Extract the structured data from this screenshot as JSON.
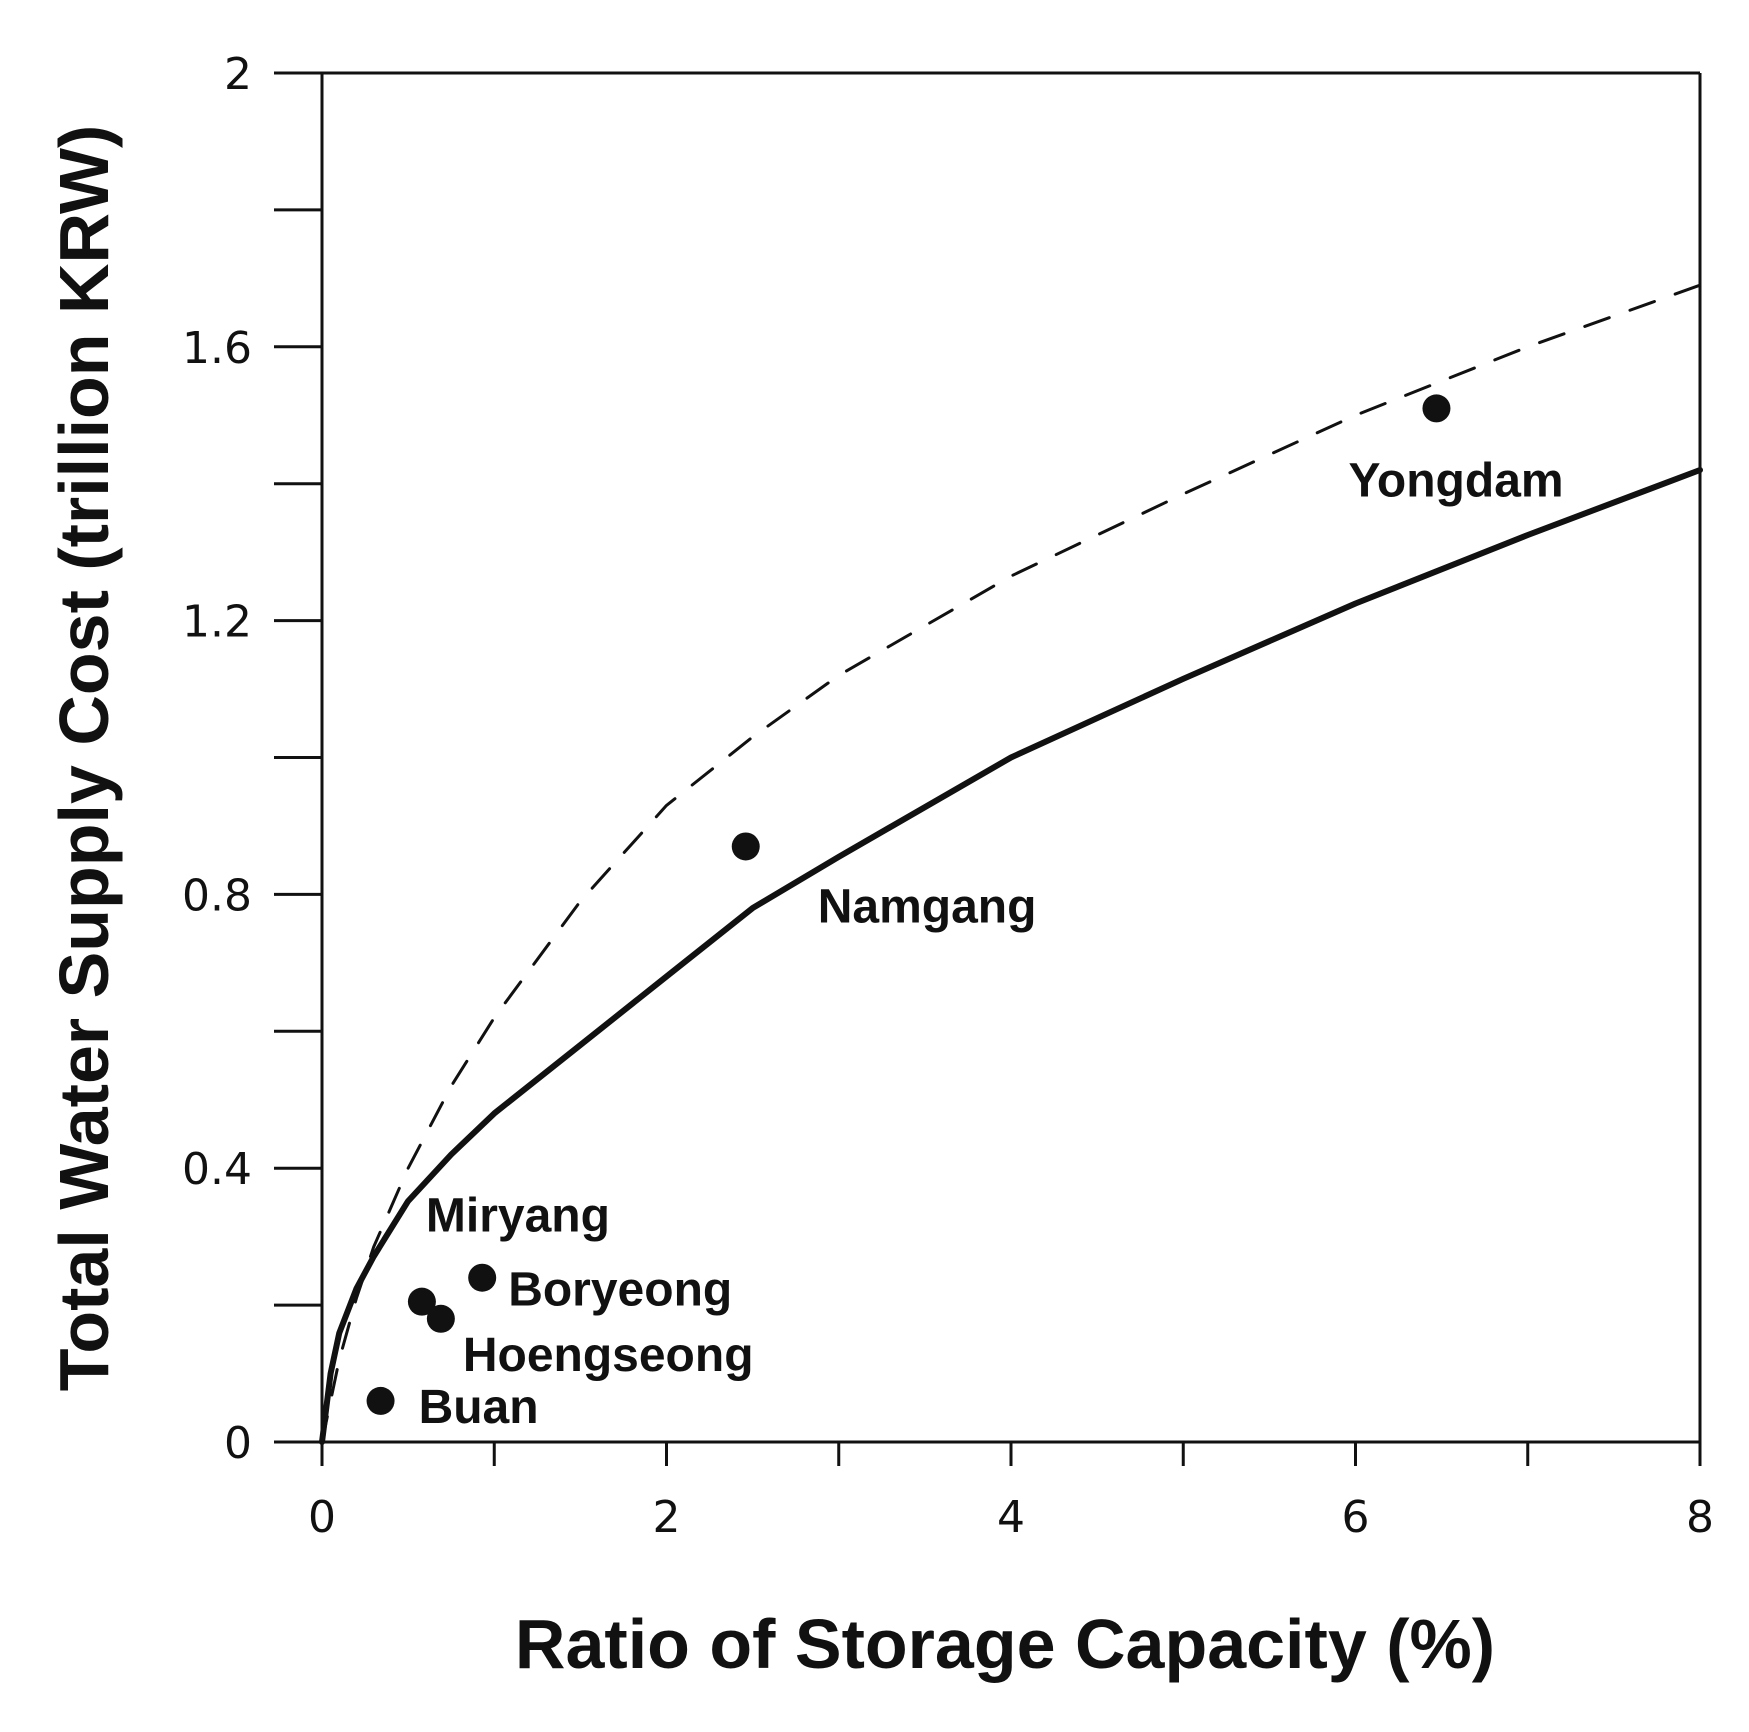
{
  "chart_data": {
    "type": "scatter",
    "title": "",
    "xlabel": "Ratio of Storage Capacity (%)",
    "ylabel": "Total Water Supply Cost (trillion KRW)",
    "xlim": [
      0,
      8
    ],
    "ylim": [
      0,
      2
    ],
    "x_ticks": [
      0,
      1,
      2,
      3,
      4,
      5,
      6,
      7,
      8
    ],
    "x_tick_labels": [
      {
        "value": 0,
        "label": "0"
      },
      {
        "value": 2,
        "label": "2"
      },
      {
        "value": 4,
        "label": "4"
      },
      {
        "value": 6,
        "label": "6"
      },
      {
        "value": 8,
        "label": "8"
      }
    ],
    "y_ticks": [
      0,
      0.2,
      0.4,
      0.6,
      0.8,
      1.0,
      1.2,
      1.4,
      1.6,
      1.8,
      2.0
    ],
    "y_tick_labels": [
      {
        "value": 0,
        "label": "0"
      },
      {
        "value": 0.4,
        "label": "0.4"
      },
      {
        "value": 0.8,
        "label": "0.8"
      },
      {
        "value": 1.2,
        "label": "1.2"
      },
      {
        "value": 1.6,
        "label": "1.6"
      },
      {
        "value": 2.0,
        "label": "2"
      }
    ],
    "grid": false,
    "points": [
      {
        "name": "Yongdam",
        "x": 6.47,
        "y": 1.51
      },
      {
        "name": "Namgang",
        "x": 2.46,
        "y": 0.87
      },
      {
        "name": "Miryang",
        "x": 0.58,
        "y": 0.205
      },
      {
        "name": "Boryeong",
        "x": 0.93,
        "y": 0.24
      },
      {
        "name": "Hoengseong",
        "x": 0.69,
        "y": 0.18
      },
      {
        "name": "Buan",
        "x": 0.34,
        "y": 0.06
      }
    ],
    "curves": [
      {
        "style": "solid",
        "x": [
          0,
          0.05,
          0.1,
          0.2,
          0.3,
          0.5,
          0.75,
          1,
          1.5,
          2,
          2.5,
          3,
          4,
          5,
          6,
          7,
          8
        ],
        "y": [
          0,
          0.1,
          0.159,
          0.224,
          0.271,
          0.352,
          0.42,
          0.48,
          0.58,
          0.68,
          0.78,
          0.855,
          1.0,
          1.115,
          1.225,
          1.325,
          1.42
        ]
      },
      {
        "style": "dashed",
        "x": [
          0,
          0.1,
          0.2,
          0.3,
          0.5,
          0.75,
          1,
          1.5,
          2,
          2.5,
          3,
          4,
          5,
          6,
          7,
          8
        ],
        "y": [
          0,
          0.12,
          0.21,
          0.285,
          0.4,
          0.52,
          0.62,
          0.79,
          0.93,
          1.03,
          1.12,
          1.265,
          1.385,
          1.5,
          1.6,
          1.69
        ]
      }
    ]
  },
  "colors": {
    "ink": "#111111",
    "background": "#ffffff"
  }
}
